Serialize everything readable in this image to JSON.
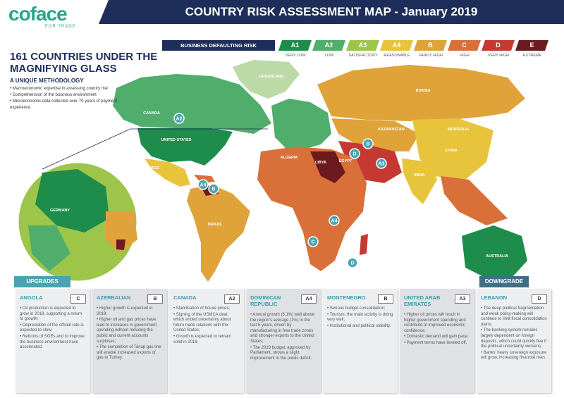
{
  "header": {
    "logo": "coface",
    "logo_sub": "FOR TRADE",
    "title": "COUNTRY RISK ASSESSMENT MAP - January 2019"
  },
  "legend": {
    "title": "BUSINESS DEFAULTING RISK",
    "items": [
      {
        "code": "A1",
        "label": "VERY LOW",
        "color": "#1e8c4a"
      },
      {
        "code": "A2",
        "label": "LOW",
        "color": "#4fae6b"
      },
      {
        "code": "A3",
        "label": "SATISFACTORY",
        "color": "#9cc54a"
      },
      {
        "code": "A4",
        "label": "REASONABLE",
        "color": "#e8c43c"
      },
      {
        "code": "B",
        "label": "FAIRLY HIGH",
        "color": "#e0a33a"
      },
      {
        "code": "C",
        "label": "HIGH",
        "color": "#d9703a"
      },
      {
        "code": "D",
        "label": "VERY HIGH",
        "color": "#c43a33"
      },
      {
        "code": "E",
        "label": "EXTREME",
        "color": "#6b1b1e"
      }
    ]
  },
  "intro": {
    "heading": "161 COUNTRIES UNDER THE MAGNIFYING GLASS",
    "subheading": "A UNIQUE METHODOLOGY",
    "bullets": [
      "• Macroeconomic expertise in assessing country risk",
      "• Comprehension of the business environment",
      "• Microeconomic data collected over 70 years of payment experience"
    ]
  },
  "map": {
    "labels": [
      "CANADA",
      "UNITED STATES",
      "MEXICO",
      "BRAZIL",
      "RUSSIA",
      "KAZAKHSTAN",
      "MONGOLIA",
      "CHINA",
      "INDIA",
      "AUSTRALIA",
      "GREENLAND",
      "ALGERIA",
      "LIBYA",
      "EGYPT",
      "GERMANY"
    ],
    "markers": [
      "A2",
      "B",
      "D",
      "A3",
      "A4",
      "B",
      "A4",
      "C",
      "D"
    ]
  },
  "upgrades_label": "UPGRADES",
  "downgrade_label": "DOWNGRADE",
  "panels": [
    {
      "country": "ANGOLA",
      "grade": "C",
      "bullets": [
        "• Oil production is expected to grow in 2019, supporting a return to growth;",
        "• Depreciation of the official rate is expected to slow;",
        "• Reforms of SOEs and to improve the business environment have accelerated."
      ]
    },
    {
      "country": "AZERBAIJAN",
      "grade": "B",
      "bullets": [
        "• Higher growth is expected in 2019;",
        "• Higher oil and gas prices have lead to increases in government spending without reducing the public and current accounts surpluses;",
        "• The completion of Tanap gas line will enable increased exports of gas to Turkey."
      ]
    },
    {
      "country": "CANADA",
      "grade": "A2",
      "bullets": [
        "• Stabilisation of house prices;",
        "• Signing of the USMCA deal, which ended uncertainty about future trade relations with the United States;",
        "• Growth is expected to remain solid in 2019."
      ]
    },
    {
      "country": "DOMINICAN REPUBLIC",
      "grade": "A4",
      "bullets": [
        "• Annual growth (6.1%) well above the region's average (1%) in the last 5 years, driven by manufacturing in free trade zones and stronger exports to the United States;",
        "• The 2019 budget, approved by Parliament, shows a slight improvement in the public deficit."
      ]
    },
    {
      "country": "MONTENEGRO",
      "grade": "B",
      "bullets": [
        "• Serious budget consolidation;",
        "• Tourism, the main activity is doing very well;",
        "• Institutional and political stability."
      ]
    },
    {
      "country": "UNITED ARAB EMIRATES",
      "grade": "A3",
      "bullets": [
        "• Higher oil prices will result in higher government spending and contribute to improved economic confidence;",
        "• Domestic demand will gain pace;",
        "• Payment terms have leveled off."
      ]
    },
    {
      "country": "LEBANON",
      "grade": "D",
      "bullets": [
        "• The deep political fragmentation and weak policy-making will continue to limit fiscal consolidation plans;",
        "• The banking system remains largely dependent on foreign deposits, which could quickly flee if the political uncertainty worsens;",
        "• Banks' heavy sovereign exposure will grow, increasing financial risks."
      ]
    }
  ]
}
